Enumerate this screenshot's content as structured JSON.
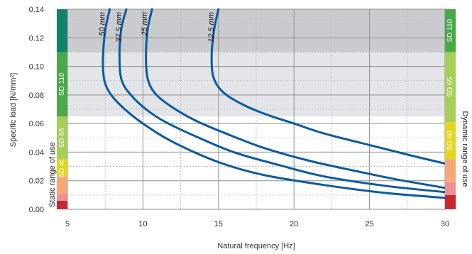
{
  "chart_data": {
    "type": "line",
    "xlabel": "Natural frequency [Hz]",
    "ylabel": "Specific load [N/mm²]",
    "xlim": [
      5,
      30
    ],
    "ylim": [
      0,
      0.14
    ],
    "x_ticks": [
      "5",
      "10",
      "15",
      "20",
      "25",
      "30"
    ],
    "y_ticks": [
      "0.00",
      "0.02",
      "0.04",
      "0.06",
      "0.08",
      "0.10",
      "0.12",
      "0.14"
    ],
    "grid": true,
    "left_band_label": "Static range of use",
    "right_band_label": "Dynamic range of use",
    "shaded_regions": [
      {
        "y": [
          0.11,
          0.14
        ],
        "color": "#c9cbcf"
      },
      {
        "y": [
          0.065,
          0.11
        ],
        "color": "#e3e5e8"
      }
    ],
    "static_bands": [
      {
        "label": "",
        "y": [
          0.0,
          0.006
        ],
        "color": "#c62a2f"
      },
      {
        "label": "",
        "y": [
          0.006,
          0.011
        ],
        "color": "#ef8f8f"
      },
      {
        "label": "",
        "y": [
          0.011,
          0.023
        ],
        "color": "#f4a878"
      },
      {
        "label": "SD 40",
        "y": [
          0.023,
          0.035
        ],
        "color": "#e6d51f"
      },
      {
        "label": "SD 65",
        "y": [
          0.035,
          0.065
        ],
        "color": "#a7ce58"
      },
      {
        "label": "SD 110",
        "y": [
          0.065,
          0.11
        ],
        "color": "#49a94a"
      },
      {
        "label": "",
        "y": [
          0.11,
          0.14
        ],
        "color": "#12826a"
      }
    ],
    "dynamic_bands": [
      {
        "label": "",
        "y": [
          0.0,
          0.01
        ],
        "color": "#c62a2f"
      },
      {
        "label": "",
        "y": [
          0.01,
          0.019
        ],
        "color": "#ef8f8f"
      },
      {
        "label": "",
        "y": [
          0.019,
          0.035
        ],
        "color": "#f4a878"
      },
      {
        "label": "SD 40",
        "y": [
          0.035,
          0.061
        ],
        "color": "#e6d51f"
      },
      {
        "label": "SD 65",
        "y": [
          0.061,
          0.11
        ],
        "color": "#a7ce58"
      },
      {
        "label": "SD 110",
        "y": [
          0.11,
          0.14
        ],
        "color": "#49a94a"
      }
    ],
    "line_color": "#0a5aa0",
    "series": [
      {
        "name": "50 mm",
        "x": [
          7.8,
          7.5,
          7.35,
          7.45,
          7.9,
          8.8,
          10,
          12,
          15,
          18,
          22,
          26,
          30
        ],
        "y": [
          0.14,
          0.125,
          0.105,
          0.09,
          0.08,
          0.07,
          0.06,
          0.047,
          0.033,
          0.024,
          0.017,
          0.0115,
          0.008
        ]
      },
      {
        "name": "37.5 mm",
        "x": [
          8.9,
          8.55,
          8.45,
          8.6,
          9.2,
          10.2,
          11.5,
          13.5,
          16,
          19,
          22,
          26,
          30
        ],
        "y": [
          0.14,
          0.125,
          0.105,
          0.09,
          0.08,
          0.07,
          0.061,
          0.051,
          0.04,
          0.031,
          0.023,
          0.0165,
          0.012
        ]
      },
      {
        "name": "25 mm",
        "x": [
          10.6,
          10.3,
          10.2,
          10.35,
          10.9,
          12,
          13.5,
          15.5,
          18,
          21,
          24,
          27,
          30
        ],
        "y": [
          0.14,
          0.125,
          0.105,
          0.09,
          0.08,
          0.071,
          0.062,
          0.053,
          0.043,
          0.034,
          0.027,
          0.0205,
          0.015
        ]
      },
      {
        "name": "12.5 mm",
        "x": [
          15.0,
          14.7,
          14.55,
          14.65,
          15.2,
          16.3,
          18,
          20,
          22,
          25,
          28,
          30
        ],
        "y": [
          0.14,
          0.125,
          0.108,
          0.093,
          0.083,
          0.075,
          0.067,
          0.06,
          0.053,
          0.045,
          0.037,
          0.032
        ]
      }
    ]
  }
}
